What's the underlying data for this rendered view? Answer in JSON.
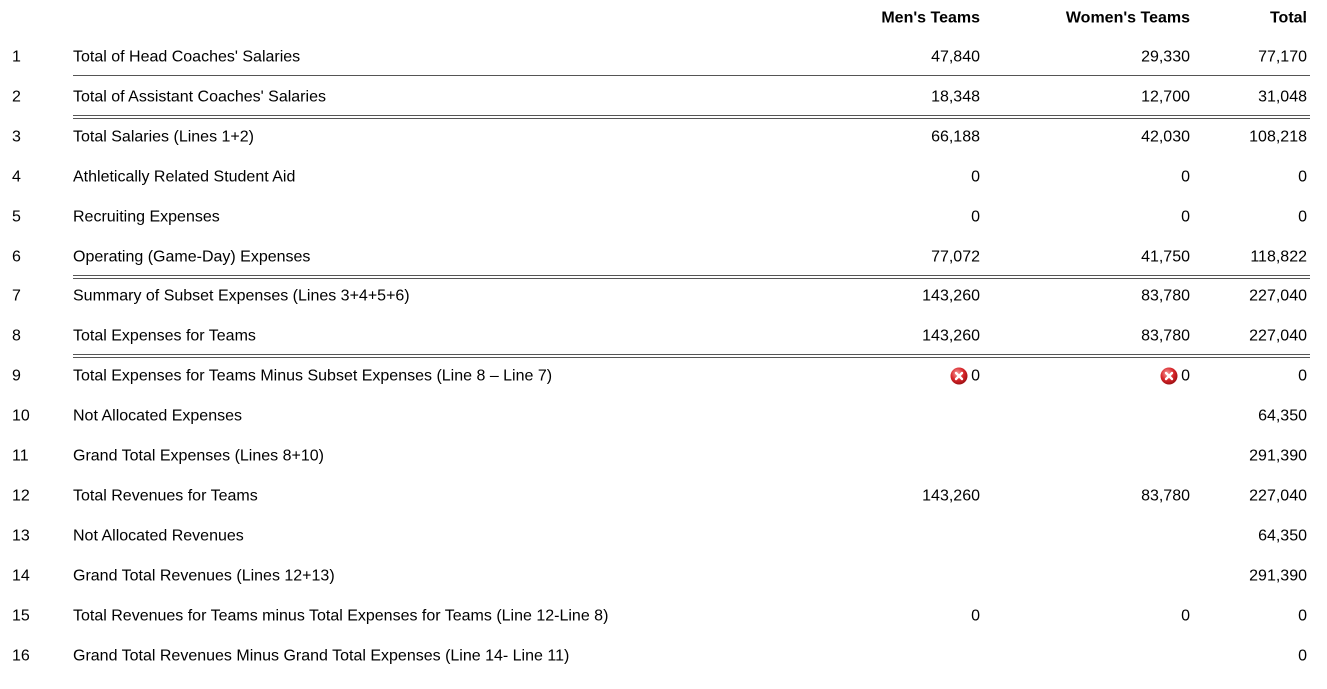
{
  "table": {
    "header": [
      "Men's Teams",
      "Women's Teams",
      "Total"
    ],
    "rows": [
      {
        "line": "1",
        "label": "Total of Head Coaches' Salaries",
        "men": "47,840",
        "women": "29,330",
        "total": "77,170",
        "rule": "single"
      },
      {
        "line": "2",
        "label": "Total of Assistant Coaches' Salaries",
        "men": "18,348",
        "women": "12,700",
        "total": "31,048",
        "rule": "double"
      },
      {
        "line": "3",
        "label": "Total Salaries (Lines 1+2)",
        "men": "66,188",
        "women": "42,030",
        "total": "108,218"
      },
      {
        "line": "4",
        "label": "Athletically Related Student Aid",
        "men": "0",
        "women": "0",
        "total": "0"
      },
      {
        "line": "5",
        "label": "Recruiting Expenses",
        "men": "0",
        "women": "0",
        "total": "0"
      },
      {
        "line": "6",
        "label": "Operating (Game-Day) Expenses",
        "men": "77,072",
        "women": "41,750",
        "total": "118,822",
        "rule": "double"
      },
      {
        "line": "7",
        "label": "Summary of Subset Expenses (Lines 3+4+5+6)",
        "men": "143,260",
        "women": "83,780",
        "total": "227,040"
      },
      {
        "line": "8",
        "label": "Total Expenses for Teams",
        "men": "143,260",
        "women": "83,780",
        "total": "227,040",
        "rule": "double"
      },
      {
        "line": "9",
        "label": "Total Expenses for Teams Minus Subset Expenses (Line 8 – Line 7)",
        "men": "0",
        "women": "0",
        "total": "0",
        "men_error": true,
        "women_error": true
      },
      {
        "line": "10",
        "label": "Not Allocated Expenses",
        "men": null,
        "women": null,
        "total": "64,350"
      },
      {
        "line": "11",
        "label": "Grand Total Expenses (Lines 8+10)",
        "men": null,
        "women": null,
        "total": "291,390"
      },
      {
        "line": "12",
        "label": "Total Revenues for Teams",
        "men": "143,260",
        "women": "83,780",
        "total": "227,040"
      },
      {
        "line": "13",
        "label": "Not Allocated Revenues",
        "men": null,
        "women": null,
        "total": "64,350"
      },
      {
        "line": "14",
        "label": "Grand Total Revenues (Lines 12+13)",
        "men": null,
        "women": null,
        "total": "291,390"
      },
      {
        "line": "15",
        "label": "Total Revenues for Teams minus Total Expenses for Teams (Line 12-Line 8)",
        "men": "0",
        "women": "0",
        "total": "0"
      },
      {
        "line": "16",
        "label": "Grand Total Revenues Minus Grand Total Expenses (Line 14- Line 11)",
        "men": null,
        "women": null,
        "total": "0"
      }
    ]
  }
}
